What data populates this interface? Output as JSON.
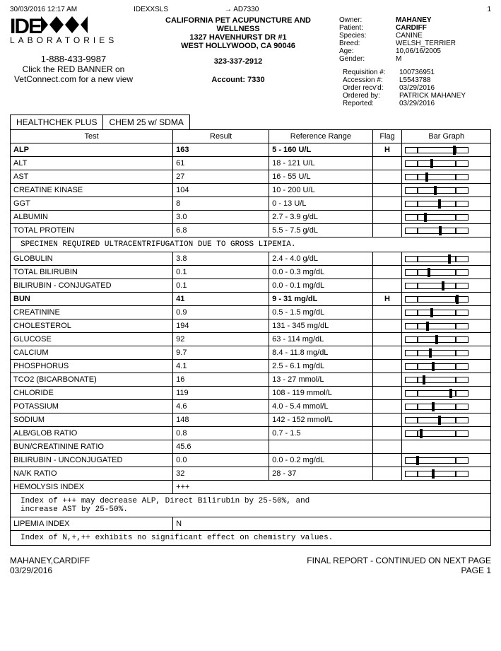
{
  "topbar": {
    "timestamp": "30/03/2016 12:17 AM",
    "code1": "IDEXXSLS",
    "code2": "→ AD7330",
    "code3": "1"
  },
  "logo": {
    "text": "IDE",
    "text2": "X",
    "laboratories": "LABORATORIES",
    "phone": "1-888-433-9987",
    "sub1": "Click the RED BANNER on",
    "sub2": "VetConnect.com for a new view"
  },
  "clinic": {
    "name": "CALIFORNIA PET ACUPUNCTURE AND WELLNESS",
    "addr1": "1327 HAVENHURST DR #1",
    "addr2": "WEST HOLLYWOOD, CA 90046",
    "phone": "323-337-2912",
    "account": "Account: 7330"
  },
  "patient": {
    "owner_label": "Owner:",
    "owner": "MAHANEY",
    "patient_label": "Patient:",
    "patient": "CARDIFF",
    "species_label": "Species:",
    "species": "CANINE",
    "breed_label": "Breed:",
    "breed": "WELSH_TERRIER",
    "age_label": "Age:",
    "age": "10,06/16/2005",
    "gender_label": "Gender:",
    "gender": "M"
  },
  "req": {
    "rows": [
      [
        "Requisition #:",
        "100736951"
      ],
      [
        "Accession #:",
        "L5543788"
      ],
      [
        "Order recv'd:",
        "03/29/2016"
      ],
      [
        "Ordered by:",
        "PATRICK MAHANEY"
      ],
      [
        "Reported:",
        "03/29/2016"
      ]
    ]
  },
  "tabs": [
    "HEALTHCHEK PLUS",
    "CHEM 25 w/ SDMA"
  ],
  "columns": [
    "Test",
    "Result",
    "Reference Range",
    "Flag",
    "Bar Graph"
  ],
  "rows": [
    {
      "test": "ALP",
      "result": "163",
      "range": "5 - 160 U/L",
      "flag": "H",
      "bar": 78,
      "bold": true
    },
    {
      "test": "ALT",
      "result": "61",
      "range": "18 - 121 U/L",
      "flag": "",
      "bar": 42
    },
    {
      "test": "AST",
      "result": "27",
      "range": "16 - 55 U/L",
      "flag": "",
      "bar": 34
    },
    {
      "test": "CREATINE KINASE",
      "result": "104",
      "range": "10 - 200 U/L",
      "flag": "",
      "bar": 48
    },
    {
      "test": "GGT",
      "result": "8",
      "range": "0 - 13 U/L",
      "flag": "",
      "bar": 54
    },
    {
      "test": "ALBUMIN",
      "result": "3.0",
      "range": "2.7 - 3.9 g/dL",
      "flag": "",
      "bar": 32
    },
    {
      "test": "TOTAL PROTEIN",
      "result": "6.8",
      "range": "5.5 - 7.5 g/dL",
      "flag": "",
      "bar": 56
    },
    {
      "note": "SPECIMEN REQUIRED ULTRACENTRIFUGATION DUE TO GROSS LIPEMIA."
    },
    {
      "test": "GLOBULIN",
      "result": "3.8",
      "range": "2.4 - 4.0 g/dL",
      "flag": "",
      "bar": 70
    },
    {
      "test": "TOTAL BILIRUBIN",
      "result": "0.1",
      "range": "0.0 - 0.3 mg/dL",
      "flag": "",
      "bar": 38
    },
    {
      "test": "BILIRUBIN - CONJUGATED",
      "result": "0.1",
      "range": "0.0 - 0.1 mg/dL",
      "flag": "",
      "bar": 60
    },
    {
      "test": "BUN",
      "result": "41",
      "range": "9 - 31 mg/dL",
      "flag": "H",
      "bar": 82,
      "bold": true
    },
    {
      "test": "CREATININE",
      "result": "0.9",
      "range": "0.5 - 1.5 mg/dL",
      "flag": "",
      "bar": 42
    },
    {
      "test": "CHOLESTEROL",
      "result": "194",
      "range": "131 - 345 mg/dL",
      "flag": "",
      "bar": 36
    },
    {
      "test": "GLUCOSE",
      "result": "92",
      "range": "63 - 114 mg/dL",
      "flag": "",
      "bar": 50
    },
    {
      "test": "CALCIUM",
      "result": "9.7",
      "range": "8.4 - 11.8 mg/dL",
      "flag": "",
      "bar": 40
    },
    {
      "test": "PHOSPHORUS",
      "result": "4.1",
      "range": "2.5 - 6.1 mg/dL",
      "flag": "",
      "bar": 44
    },
    {
      "test": "TCO2 (BICARBONATE)",
      "result": "16",
      "range": "13 - 27 mmol/L",
      "flag": "",
      "bar": 30
    },
    {
      "test": "CHLORIDE",
      "result": "119",
      "range": "108 - 119 mmol/L",
      "flag": "",
      "bar": 72
    },
    {
      "test": "POTASSIUM",
      "result": "4.6",
      "range": "4.0 - 5.4 mmol/L",
      "flag": "",
      "bar": 44
    },
    {
      "test": "SODIUM",
      "result": "148",
      "range": "142 - 152 mmol/L",
      "flag": "",
      "bar": 54
    },
    {
      "test": "ALB/GLOB RATIO",
      "result": "0.8",
      "range": "0.7 - 1.5",
      "flag": "",
      "bar": 26
    },
    {
      "test": "BUN/CREATININE RATIO",
      "result": "45.6",
      "range": "",
      "flag": "",
      "bar": null
    },
    {
      "test": "BILIRUBIN - UNCONJUGATED",
      "result": "0.0",
      "range": "0.0 - 0.2 mg/dL",
      "flag": "",
      "bar": 20
    },
    {
      "test": "NA/K RATIO",
      "result": "32",
      "range": "28 - 37",
      "flag": "",
      "bar": 44
    },
    {
      "test": "HEMOLYSIS INDEX",
      "result": "+++",
      "range": "",
      "flag": "",
      "bar": null,
      "span": true
    },
    {
      "note": "Index of +++ may decrease ALP, Direct Bilirubin by 25-50%, and\nincrease AST by 25-50%."
    },
    {
      "test": "LIPEMIA INDEX",
      "result": "N",
      "range": "",
      "flag": "",
      "bar": null,
      "span": true
    },
    {
      "note": "Index of N,+,++ exhibits no significant effect on chemistry values."
    }
  ],
  "footer": {
    "left1": "MAHANEY,CARDIFF",
    "left2": "03/29/2016",
    "right1": "FINAL REPORT - CONTINUED ON NEXT PAGE",
    "right2": "PAGE 1"
  }
}
